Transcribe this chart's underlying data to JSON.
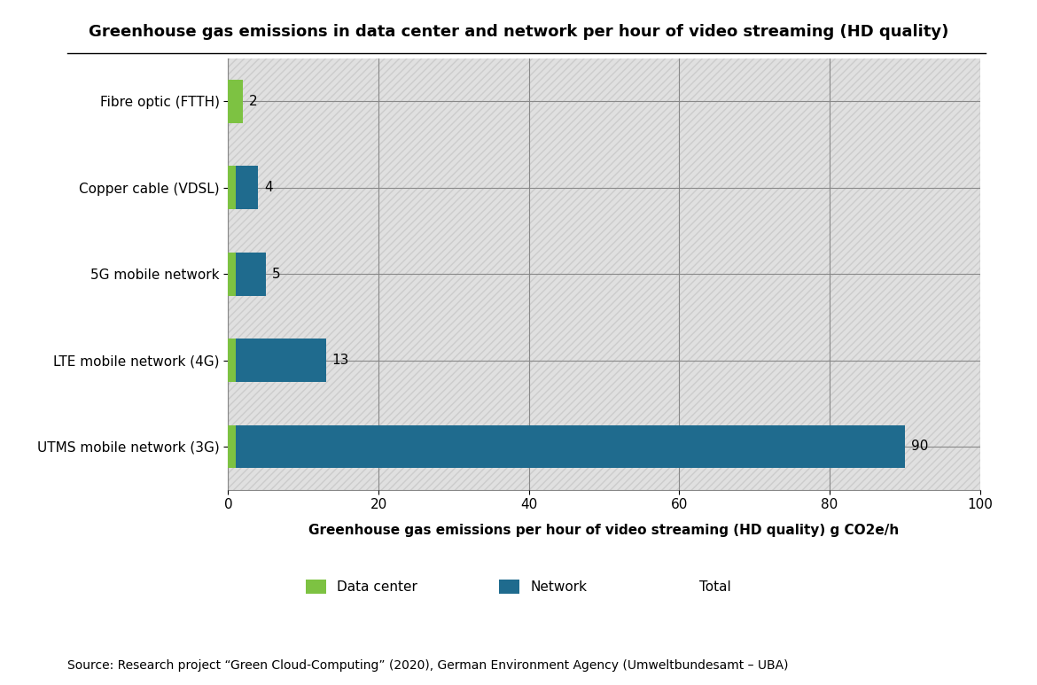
{
  "title": "Greenhouse gas emissions in data center and network per hour of video streaming (HD quality)",
  "xlabel": "Greenhouse gas emissions per hour of video streaming (HD quality) g CO2e/h",
  "source": "Source: Research project “Green Cloud-Computing” (2020), German Environment Agency (Umweltbundesamt – UBA)",
  "categories": [
    "UTMS mobile network (3G)",
    "LTE mobile network (4G)",
    "5G mobile network",
    "Copper cable (VDSL)",
    "Fibre optic (FTTH)"
  ],
  "data_center_values": [
    1,
    1,
    1,
    1,
    2
  ],
  "network_values": [
    89,
    12,
    4,
    3,
    0
  ],
  "total_labels": [
    "90",
    "13",
    "5",
    "4",
    "2"
  ],
  "data_center_color": "#7dc242",
  "network_color": "#1f6b8e",
  "xlim": [
    0,
    100
  ],
  "xticks": [
    0,
    20,
    40,
    60,
    80,
    100
  ],
  "background_color": "#ffffff",
  "chart_bg_color": "#e0e0e0",
  "hatch_pattern": "////",
  "hatch_color": "#cccccc",
  "legend_labels": [
    "Data center",
    "Network",
    "Total"
  ],
  "title_fontsize": 13,
  "xlabel_fontsize": 11,
  "tick_fontsize": 11,
  "label_fontsize": 11,
  "source_fontsize": 10,
  "bar_height": 0.5,
  "grid_color": "#888888",
  "spine_color": "#888888"
}
